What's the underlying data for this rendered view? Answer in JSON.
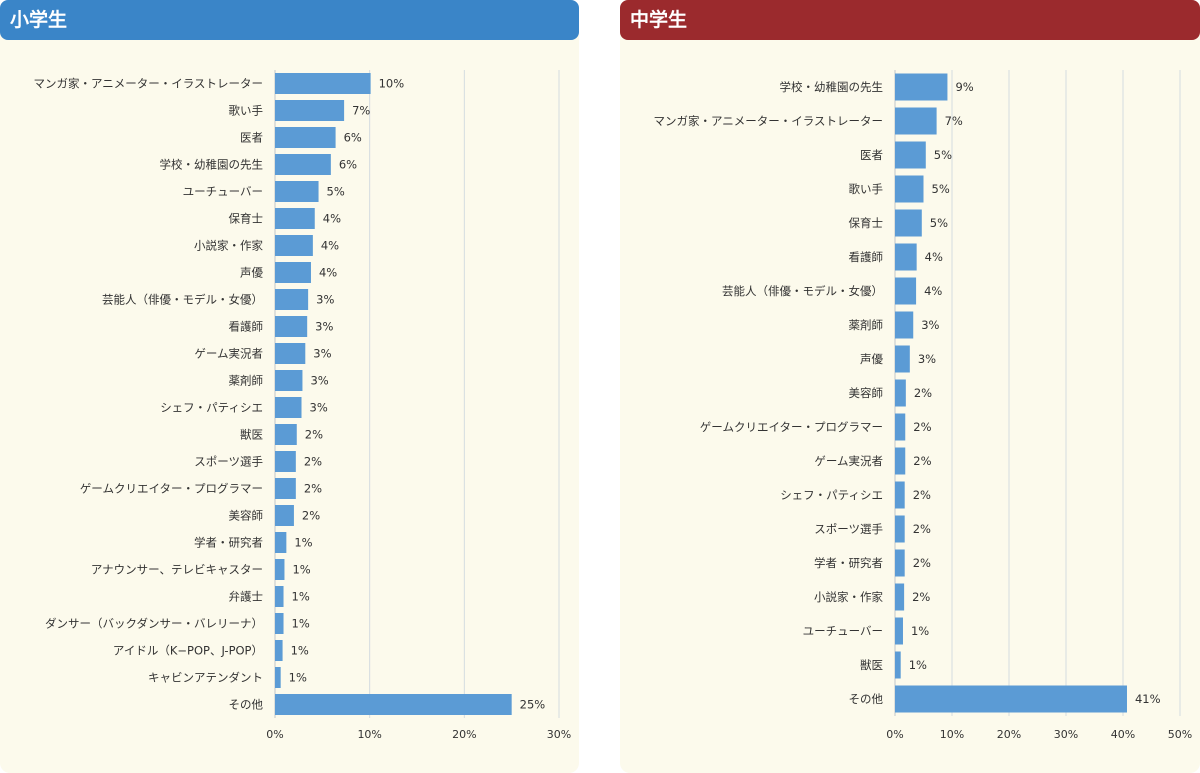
{
  "colors": {
    "bar": "#5b9bd5",
    "elementary_header": "#3a85c8",
    "junior_high_header": "#9b2a2d",
    "panel_background": "#fcfaec",
    "grid": "#d4dce0"
  },
  "panels": [
    {
      "title": "小学生"
    },
    {
      "title": "中学生"
    }
  ],
  "chart_data": [
    {
      "type": "bar",
      "orientation": "horizontal",
      "title": "",
      "categories": [
        "マンガ家・アニメーター・イラストレーター",
        "歌い手",
        "医者",
        "学校・幼稚園の先生",
        "ユーチューバー",
        "保育士",
        "小説家・作家",
        "声優",
        "芸能人（俳優・モデル・女優）",
        "看護師",
        "ゲーム実況者",
        "薬剤師",
        "シェフ・パティシエ",
        "獣医",
        "スポーツ選手",
        "ゲームクリエイター・プログラマー",
        "美容師",
        "学者・研究者",
        "アナウンサー、テレビキャスター",
        "弁護士",
        "ダンサー（バックダンサー・バレリーナ）",
        "アイドル（K−POP、J-POP）",
        "キャビンアテンダント",
        "その他"
      ],
      "values": [
        10.1,
        7.3,
        6.4,
        5.9,
        4.6,
        4.2,
        4.0,
        3.8,
        3.5,
        3.4,
        3.2,
        2.9,
        2.8,
        2.3,
        2.2,
        2.2,
        2.0,
        1.2,
        1.0,
        0.9,
        0.9,
        0.8,
        0.6,
        25.0
      ],
      "value_labels": [
        "10%",
        "7%",
        "6%",
        "6%",
        "5%",
        "4%",
        "4%",
        "4%",
        "3%",
        "3%",
        "3%",
        "3%",
        "3%",
        "2%",
        "2%",
        "2%",
        "2%",
        "1%",
        "1%",
        "1%",
        "1%",
        "1%",
        "1%",
        "25%"
      ],
      "xlim": [
        0,
        30
      ],
      "xticks": [
        "0%",
        "10%",
        "20%",
        "30%"
      ],
      "grid": true,
      "legend": "none"
    },
    {
      "type": "bar",
      "orientation": "horizontal",
      "title": "",
      "categories": [
        "学校・幼稚園の先生",
        "マンガ家・アニメーター・イラストレーター",
        "医者",
        "歌い手",
        "保育士",
        "看護師",
        "芸能人（俳優・モデル・女優）",
        "薬剤師",
        "声優",
        "美容師",
        "ゲームクリエイター・プログラマー",
        "ゲーム実況者",
        "シェフ・パティシエ",
        "スポーツ選手",
        "学者・研究者",
        "小説家・作家",
        "ユーチューバー",
        "獣医",
        "その他"
      ],
      "values": [
        9.2,
        7.3,
        5.4,
        5.0,
        4.7,
        3.8,
        3.7,
        3.2,
        2.6,
        1.9,
        1.8,
        1.8,
        1.7,
        1.7,
        1.7,
        1.6,
        1.4,
        1.0,
        40.7
      ],
      "value_labels": [
        "9%",
        "7%",
        "5%",
        "5%",
        "5%",
        "4%",
        "4%",
        "3%",
        "3%",
        "2%",
        "2%",
        "2%",
        "2%",
        "2%",
        "2%",
        "2%",
        "1%",
        "1%",
        "41%"
      ],
      "xlim": [
        0,
        50
      ],
      "xticks": [
        "0%",
        "10%",
        "20%",
        "30%",
        "40%",
        "50%"
      ],
      "grid": true,
      "legend": "none"
    }
  ]
}
